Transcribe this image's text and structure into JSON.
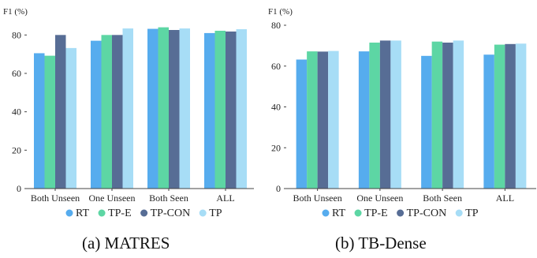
{
  "chart_data": [
    {
      "type": "bar",
      "ylabel": "F1 (%)",
      "categories": [
        "Both Unseen",
        "One Unseen",
        "Both Seen",
        "ALL"
      ],
      "yticks": [
        0,
        20,
        40,
        60,
        80
      ],
      "ylim": [
        0,
        90
      ],
      "grid": false,
      "legend_position": "bottom",
      "series": [
        {
          "name": "RT",
          "color": "#56acee",
          "values": [
            70.5,
            77,
            83.2,
            81
          ]
        },
        {
          "name": "TP-E",
          "color": "#5dd6a4",
          "values": [
            69.2,
            80,
            84,
            82.2
          ]
        },
        {
          "name": "TP-CON",
          "color": "#576d95",
          "values": [
            80,
            80,
            82.6,
            81.8
          ]
        },
        {
          "name": "TP",
          "color": "#a7ddf6",
          "values": [
            73.2,
            83.4,
            83.4,
            83
          ]
        }
      ],
      "caption": "(a)  MATRES"
    },
    {
      "type": "bar",
      "ylabel": "F1 (%)",
      "categories": [
        "Both Unseen",
        "One Unseen",
        "Both Seen",
        "ALL"
      ],
      "yticks": [
        0,
        20,
        40,
        60,
        80
      ],
      "ylim": [
        0,
        80
      ],
      "grid": false,
      "legend_position": "bottom",
      "series": [
        {
          "name": "RT",
          "color": "#56acee",
          "values": [
            63.2,
            67.2,
            65,
            65.6
          ]
        },
        {
          "name": "TP-E",
          "color": "#5dd6a4",
          "values": [
            67.2,
            71.5,
            72,
            70.5
          ]
        },
        {
          "name": "TP-CON",
          "color": "#576d95",
          "values": [
            67.1,
            72.5,
            71.5,
            70.8
          ]
        },
        {
          "name": "TP",
          "color": "#a7ddf6",
          "values": [
            67.4,
            72.5,
            72.5,
            71
          ]
        }
      ],
      "caption": "(b)  TB-Dense"
    }
  ]
}
